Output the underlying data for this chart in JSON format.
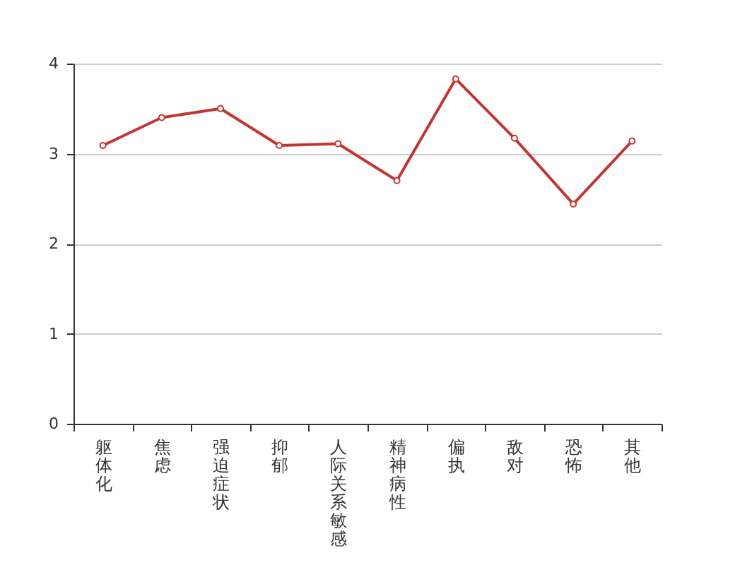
{
  "chart_data": {
    "type": "line",
    "categories": [
      "躯体化",
      "焦虑",
      "强迫症状",
      "抑郁",
      "人际关系敏感",
      "精神病性",
      "偏执",
      "敌对",
      "恐怖",
      "其他"
    ],
    "values": [
      3.09,
      3.4,
      3.5,
      3.09,
      3.11,
      2.7,
      3.83,
      3.17,
      2.44,
      3.14
    ],
    "color": "#c23531",
    "ylim": [
      0,
      4
    ],
    "yticks": [
      0,
      1,
      2,
      3,
      4
    ],
    "grid": "y",
    "marker": "circle"
  }
}
